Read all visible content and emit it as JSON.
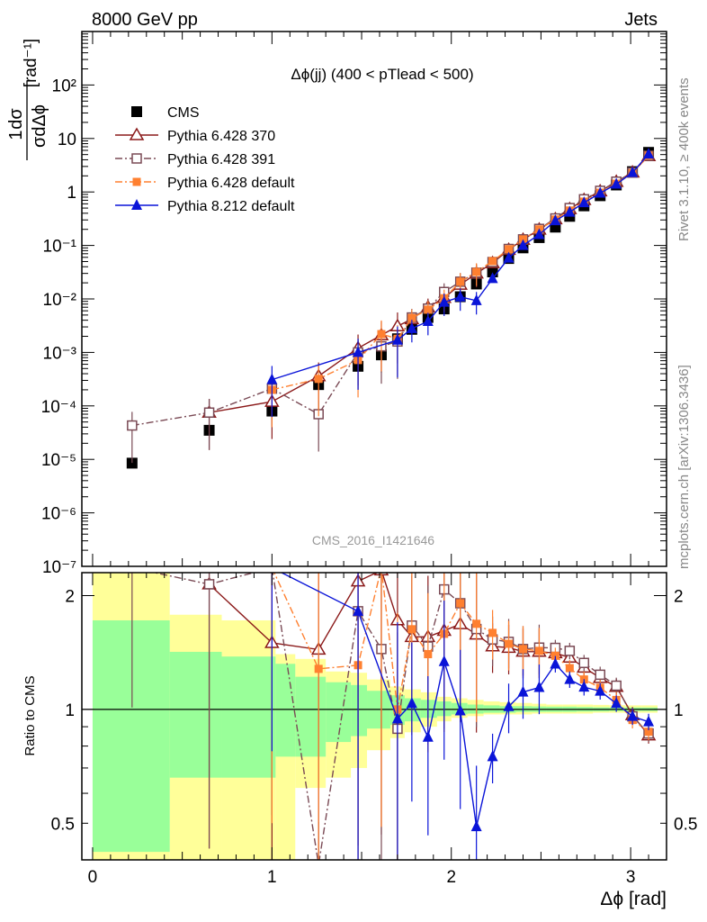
{
  "header": {
    "left": "8000 GeV pp",
    "right": "Jets"
  },
  "side_labels": {
    "rivet": "Rivet 3.1.10, ≥ 400k events",
    "mcplots": "mcplots.cern.ch [arXiv:1306.3436]"
  },
  "watermark": "CMS_2016_I1421646",
  "chart_data": [
    {
      "type": "scatter",
      "panel": "main",
      "title": "Δϕ(jj) (400 < pTlead <  500)",
      "ylabel": "1/σ dσ/dΔϕ [rad⁻¹]",
      "xlabel": "",
      "yscale": "log",
      "ylim": [
        1e-07,
        1000
      ],
      "xlim": [
        -0.06,
        3.2
      ],
      "y_tick_labels": [
        "10⁻⁷",
        "10⁻⁶",
        "10⁻⁵",
        "10⁻⁴",
        "10⁻³",
        "10⁻²",
        "10⁻¹",
        "1",
        "10",
        "10²"
      ],
      "legend_position": "top-left",
      "colors": {
        "CMS": "#000000",
        "Pythia 6.428 370": "#8b1a1a",
        "Pythia 6.428 391": "#7a4a55",
        "Pythia 6.428 default": "#ff8030",
        "Pythia 8.212 default": "#0a14d8"
      },
      "x": [
        0.22,
        0.65,
        1.0,
        1.26,
        1.48,
        1.61,
        1.7,
        1.78,
        1.87,
        1.96,
        2.05,
        2.14,
        2.23,
        2.32,
        2.4,
        2.49,
        2.58,
        2.66,
        2.74,
        2.83,
        2.92,
        3.01,
        3.1
      ],
      "series": [
        {
          "name": "CMS",
          "marker": "square",
          "values": [
            8.5e-06,
            3.5e-05,
            8e-05,
            0.00025,
            0.00055,
            0.0009,
            0.0018,
            0.0027,
            0.0045,
            0.0065,
            0.011,
            0.019,
            0.032,
            0.057,
            0.09,
            0.14,
            0.22,
            0.35,
            0.55,
            0.85,
            1.35,
            2.4,
            5.5
          ]
        },
        {
          "name": "Pythia 6.428 370",
          "marker": "open-triangle",
          "style": "solid",
          "values": [
            null,
            7.5e-05,
            0.00012,
            0.00036,
            0.0012,
            0.0021,
            0.0031,
            0.0042,
            0.007,
            0.0105,
            0.0185,
            0.03,
            0.047,
            0.083,
            0.128,
            0.199,
            0.31,
            0.48,
            0.71,
            1.03,
            1.55,
            2.32,
            4.7
          ]
        },
        {
          "name": "Pythia 6.428 391",
          "marker": "open-square",
          "style": "dashdot",
          "values": [
            4.3e-05,
            7.5e-05,
            0.00021,
            7e-05,
            0.001,
            0.0013,
            0.0016,
            0.0045,
            0.0066,
            0.0135,
            0.021,
            0.031,
            0.049,
            0.086,
            0.13,
            0.204,
            0.32,
            0.5,
            0.73,
            1.05,
            1.56,
            2.3,
            4.75
          ]
        },
        {
          "name": "Pythia 6.428 default",
          "marker": "filled-square",
          "style": "dashdot",
          "values": [
            null,
            null,
            0.0002,
            0.00032,
            0.00072,
            0.0022,
            0.0018,
            0.0044,
            0.0063,
            0.0103,
            0.021,
            0.032,
            0.051,
            0.085,
            0.13,
            0.2,
            0.305,
            0.45,
            0.66,
            0.97,
            1.43,
            2.25,
            4.8
          ]
        },
        {
          "name": "Pythia 8.212 default",
          "marker": "filled-triangle",
          "style": "solid",
          "values": [
            null,
            null,
            0.00031,
            null,
            0.001,
            null,
            0.0017,
            0.0028,
            0.0038,
            0.0087,
            0.0109,
            0.0093,
            0.024,
            0.058,
            0.1,
            0.16,
            0.29,
            0.42,
            0.63,
            0.95,
            1.4,
            2.3,
            5.1
          ]
        }
      ],
      "ratio_panel": {
        "ylabel": "Ratio to CMS",
        "y_tick_labels": [
          "0.5",
          "1",
          "2"
        ],
        "x_tick_labels": [
          "0",
          "1",
          "2",
          "3"
        ],
        "xlabel": "Δϕ [rad]",
        "ylim": [
          0.4,
          2.3
        ],
        "bands": {
          "bins": [
            [
              0.0,
              0.43
            ],
            [
              0.43,
              0.72
            ],
            [
              0.72,
              1.02
            ],
            [
              1.02,
              1.13
            ],
            [
              1.13,
              1.3
            ],
            [
              1.3,
              1.44
            ],
            [
              1.44,
              1.53
            ],
            [
              1.53,
              1.66
            ],
            [
              1.66,
              1.74
            ],
            [
              1.74,
              1.83
            ],
            [
              1.83,
              1.92
            ],
            [
              1.92,
              2.0
            ],
            [
              2.0,
              2.09
            ],
            [
              2.09,
              2.18
            ],
            [
              2.18,
              2.27
            ],
            [
              2.27,
              2.36
            ],
            [
              2.36,
              2.45
            ],
            [
              2.45,
              2.53
            ],
            [
              2.53,
              2.62
            ],
            [
              2.62,
              2.7
            ],
            [
              2.7,
              2.79
            ],
            [
              2.79,
              2.88
            ],
            [
              2.88,
              2.97
            ],
            [
              2.97,
              3.06
            ],
            [
              3.06,
              3.15
            ]
          ],
          "green": [
            [
              0.42,
              1.72
            ],
            [
              0.66,
              1.42
            ],
            [
              0.66,
              1.38
            ],
            [
              0.75,
              1.32
            ],
            [
              0.75,
              1.22
            ],
            [
              0.82,
              1.18
            ],
            [
              0.85,
              1.16
            ],
            [
              0.89,
              1.12
            ],
            [
              0.91,
              1.09
            ],
            [
              0.93,
              1.07
            ],
            [
              0.95,
              1.06
            ],
            [
              0.96,
              1.05
            ],
            [
              0.97,
              1.04
            ],
            [
              0.975,
              1.03
            ],
            [
              0.98,
              1.025
            ],
            [
              0.98,
              1.02
            ],
            [
              0.985,
              1.02
            ],
            [
              0.985,
              1.018
            ],
            [
              0.985,
              1.017
            ],
            [
              0.985,
              1.017
            ],
            [
              0.987,
              1.015
            ],
            [
              0.988,
              1.013
            ],
            [
              0.99,
              1.012
            ],
            [
              0.99,
              1.012
            ],
            [
              0.99,
              1.012
            ]
          ],
          "yellow": [
            [
              0.4,
              2.3
            ],
            [
              0.4,
              1.78
            ],
            [
              0.4,
              1.72
            ],
            [
              0.4,
              1.4
            ],
            [
              0.62,
              1.36
            ],
            [
              0.66,
              1.26
            ],
            [
              0.7,
              1.25
            ],
            [
              0.78,
              1.2
            ],
            [
              0.84,
              1.15
            ],
            [
              0.87,
              1.13
            ],
            [
              0.9,
              1.11
            ],
            [
              0.93,
              1.08
            ],
            [
              0.95,
              1.07
            ],
            [
              0.96,
              1.06
            ],
            [
              0.97,
              1.05
            ],
            [
              0.97,
              1.045
            ],
            [
              0.97,
              1.04
            ],
            [
              0.975,
              1.035
            ],
            [
              0.975,
              1.03
            ],
            [
              0.975,
              1.03
            ],
            [
              0.975,
              1.03
            ],
            [
              0.98,
              1.028
            ],
            [
              0.98,
              1.026
            ],
            [
              0.98,
              1.025
            ],
            [
              0.98,
              1.025
            ]
          ]
        }
      }
    }
  ]
}
